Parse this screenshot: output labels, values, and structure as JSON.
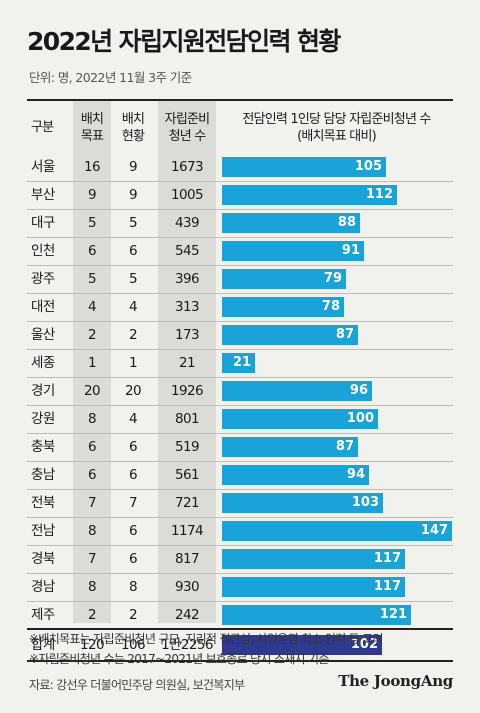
{
  "title": "2022년 자립지원전담인력 현황",
  "unit": "단위: 명, 2022년 11월 3주 기준",
  "headers": {
    "region": "구분",
    "target": "배치\n목표",
    "current": "배치\n현황",
    "youth": "자립준비\n청년 수",
    "ratio": "전담인력 1인당 담당 자립준비청년 수\n(배치목표 대비)"
  },
  "chart_data": {
    "type": "table",
    "columns": [
      "구분",
      "배치목표",
      "배치현황",
      "자립준비청년 수",
      "전담인력 1인당 담당 자립준비청년 수(배치목표 대비)"
    ],
    "rows": [
      {
        "region": "서울",
        "target": "16",
        "current": "9",
        "youth": "1673",
        "ratio": 105
      },
      {
        "region": "부산",
        "target": "9",
        "current": "9",
        "youth": "1005",
        "ratio": 112
      },
      {
        "region": "대구",
        "target": "5",
        "current": "5",
        "youth": "439",
        "ratio": 88
      },
      {
        "region": "인천",
        "target": "6",
        "current": "6",
        "youth": "545",
        "ratio": 91
      },
      {
        "region": "광주",
        "target": "5",
        "current": "5",
        "youth": "396",
        "ratio": 79
      },
      {
        "region": "대전",
        "target": "4",
        "current": "4",
        "youth": "313",
        "ratio": 78
      },
      {
        "region": "울산",
        "target": "2",
        "current": "2",
        "youth": "173",
        "ratio": 87
      },
      {
        "region": "세종",
        "target": "1",
        "current": "1",
        "youth": "21",
        "ratio": 21
      },
      {
        "region": "경기",
        "target": "20",
        "current": "20",
        "youth": "1926",
        "ratio": 96
      },
      {
        "region": "강원",
        "target": "8",
        "current": "4",
        "youth": "801",
        "ratio": 100
      },
      {
        "region": "충북",
        "target": "6",
        "current": "6",
        "youth": "519",
        "ratio": 87
      },
      {
        "region": "충남",
        "target": "6",
        "current": "6",
        "youth": "561",
        "ratio": 94
      },
      {
        "region": "전북",
        "target": "7",
        "current": "7",
        "youth": "721",
        "ratio": 103
      },
      {
        "region": "전남",
        "target": "8",
        "current": "6",
        "youth": "1174",
        "ratio": 147
      },
      {
        "region": "경북",
        "target": "7",
        "current": "6",
        "youth": "817",
        "ratio": 117
      },
      {
        "region": "경남",
        "target": "8",
        "current": "8",
        "youth": "930",
        "ratio": 117
      },
      {
        "region": "제주",
        "target": "2",
        "current": "2",
        "youth": "242",
        "ratio": 121
      }
    ],
    "total": {
      "region": "합계",
      "target": "120",
      "current": "106",
      "youth": "1만2256",
      "ratio": 102
    },
    "bar_max": 147
  },
  "colors": {
    "bar": "#1aa3d6",
    "total_bar": "#2f3a8f",
    "shade": "#dcdcd7"
  },
  "notes": [
    "※배치목표는 자립준비청년 규모, 지리적 접근성, 사업운영 최소 인력 등 고려",
    "※자립준비청년 수는 2017~2021년 보호종료 당시 소재지 기준"
  ],
  "source": "자료: 강선우 더불어민주당 의원실, 보건복지부",
  "logo": "The JoongAng"
}
